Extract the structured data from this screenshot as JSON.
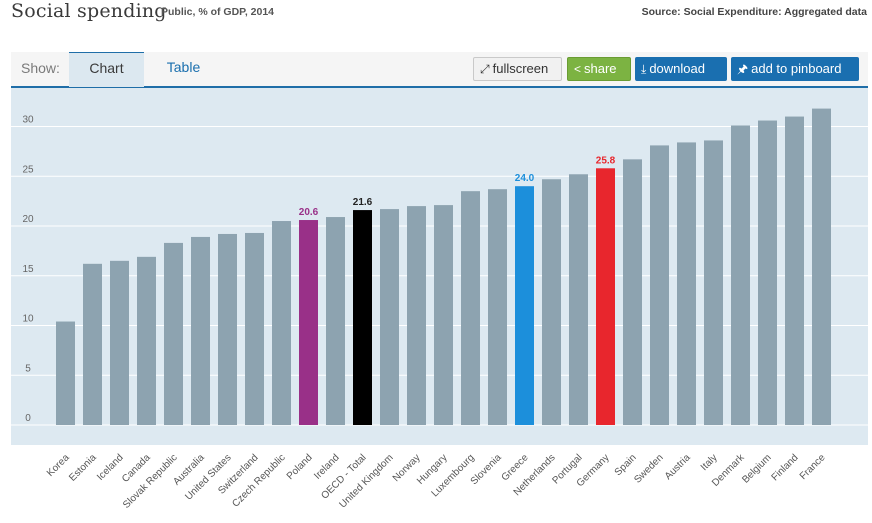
{
  "header": {
    "title": "Social spending",
    "subtitle": "Public, % of GDP, 2014",
    "source": "Source: Social Expenditure: Aggregated data"
  },
  "toolbar": {
    "show_label": "Show:",
    "tabs": [
      {
        "label": "Chart",
        "active": true
      },
      {
        "label": "Table",
        "active": false
      }
    ],
    "buttons": {
      "fullscreen": {
        "label": "fullscreen",
        "icon": "expand-icon"
      },
      "share": {
        "label": "share",
        "icon": "share-icon"
      },
      "download": {
        "label": "download",
        "icon": "download-icon"
      },
      "pinboard": {
        "label": "add to pinboard",
        "icon": "pin-icon"
      }
    }
  },
  "colors": {
    "default_bar": "#8da3b0",
    "plot_bg": "#dde9f1",
    "accent_blue": "#1a6fb0",
    "share_green": "#7cb342"
  },
  "chart_data": {
    "type": "bar",
    "title": "Social spending",
    "subtitle": "Public, % of GDP, 2014",
    "xlabel": "",
    "ylabel": "",
    "ylim": [
      0,
      32
    ],
    "yticks": [
      0,
      5,
      10,
      15,
      20,
      25,
      30
    ],
    "grid": true,
    "categories": [
      "Korea",
      "Estonia",
      "Iceland",
      "Canada",
      "Slovak Republic",
      "Australia",
      "United States",
      "Switzerland",
      "Czech Republic",
      "Poland",
      "Ireland",
      "OECD - Total",
      "United Kingdom",
      "Norway",
      "Hungary",
      "Luxembourg",
      "Slovenia",
      "Greece",
      "Netherlands",
      "Portugal",
      "Germany",
      "Spain",
      "Sweden",
      "Austria",
      "Italy",
      "Denmark",
      "Belgium",
      "Finland",
      "France"
    ],
    "values": [
      10.4,
      16.2,
      16.5,
      16.9,
      18.3,
      18.9,
      19.2,
      19.3,
      20.5,
      20.6,
      20.9,
      21.6,
      21.7,
      22.0,
      22.1,
      23.5,
      23.7,
      24.0,
      24.7,
      25.2,
      25.8,
      26.7,
      28.1,
      28.4,
      28.6,
      30.1,
      30.6,
      31.0,
      31.8
    ],
    "highlights": [
      {
        "category": "Poland",
        "color": "#993088",
        "label": "20.6"
      },
      {
        "category": "OECD - Total",
        "color": "#000000",
        "label": "21.6"
      },
      {
        "category": "Greece",
        "color": "#1c8fdb",
        "label": "24.0"
      },
      {
        "category": "Germany",
        "color": "#e8262d",
        "label": "25.8"
      }
    ]
  }
}
